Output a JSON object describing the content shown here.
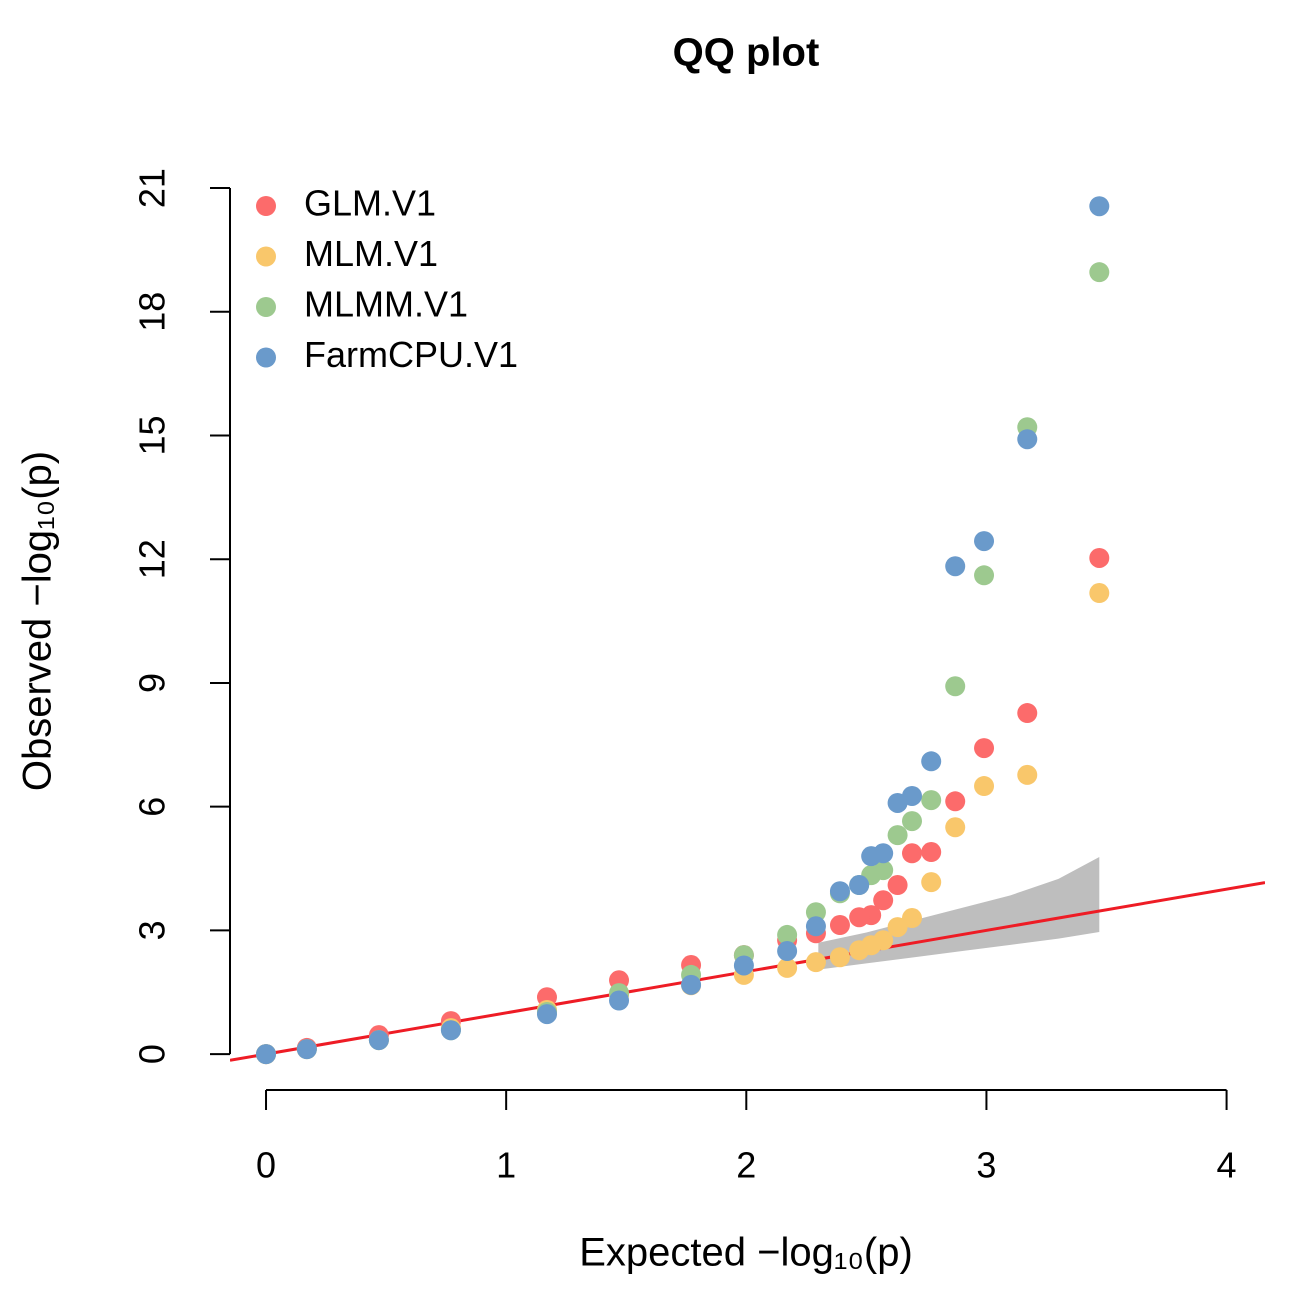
{
  "chart_data": {
    "type": "scatter",
    "title": "QQ plot",
    "xlabel": "Expected  −log₁₀(p)",
    "ylabel": "Observed  −log₁₀(p)",
    "xlim": [
      -0.15,
      4.16
    ],
    "ylim": [
      -0.87,
      21.85
    ],
    "xticks": [
      0,
      1,
      2,
      3,
      4
    ],
    "yticks": [
      0,
      3,
      6,
      9,
      12,
      15,
      18,
      21
    ],
    "legend": "top-left",
    "reference_line_color": "#ee1c25",
    "confidence_band": {
      "color": "#bebebe",
      "x": [
        2.3,
        2.5,
        2.7,
        2.9,
        3.1,
        3.3,
        3.47
      ],
      "upper": [
        2.7,
        2.95,
        3.25,
        3.55,
        3.85,
        4.25,
        4.78
      ],
      "lower": [
        2.05,
        2.2,
        2.35,
        2.5,
        2.65,
        2.8,
        2.96
      ]
    },
    "x": [
      3.47,
      3.17,
      2.99,
      2.87,
      2.77,
      2.69,
      2.63,
      2.57,
      2.52,
      2.47,
      2.39,
      2.29,
      2.17,
      1.99,
      1.77,
      1.47,
      1.17,
      0.77,
      0.47,
      0.17,
      0
    ],
    "series": [
      {
        "name": "GLM.V1",
        "color": "#fc6b6b",
        "values": [
          12.03,
          8.27,
          7.42,
          6.13,
          4.9,
          4.87,
          4.1,
          3.73,
          3.37,
          3.32,
          3.13,
          2.93,
          2.76,
          2.4,
          2.16,
          1.79,
          1.38,
          0.8,
          0.46,
          0.15,
          0
        ]
      },
      {
        "name": "MLM.V1",
        "color": "#f9c76b",
        "values": [
          11.18,
          6.77,
          6.5,
          5.5,
          4.17,
          3.3,
          3.08,
          2.76,
          2.64,
          2.52,
          2.35,
          2.23,
          2.09,
          1.92,
          1.67,
          1.43,
          1.07,
          0.63,
          0.34,
          0.12,
          0
        ]
      },
      {
        "name": "MLMM.V1",
        "color": "#9dc98f",
        "values": [
          18.96,
          15.2,
          11.61,
          8.92,
          6.16,
          5.65,
          5.31,
          4.46,
          4.34,
          4.1,
          3.9,
          3.44,
          2.89,
          2.4,
          1.92,
          1.48,
          1.02,
          0.58,
          0.34,
          0.12,
          0
        ]
      },
      {
        "name": "FarmCPU.V1",
        "color": "#6a9acb",
        "values": [
          20.56,
          14.91,
          12.44,
          11.83,
          7.1,
          6.26,
          6.09,
          4.87,
          4.8,
          4.1,
          3.95,
          3.1,
          2.5,
          2.15,
          1.68,
          1.3,
          0.97,
          0.58,
          0.34,
          0.12,
          0
        ]
      }
    ]
  }
}
